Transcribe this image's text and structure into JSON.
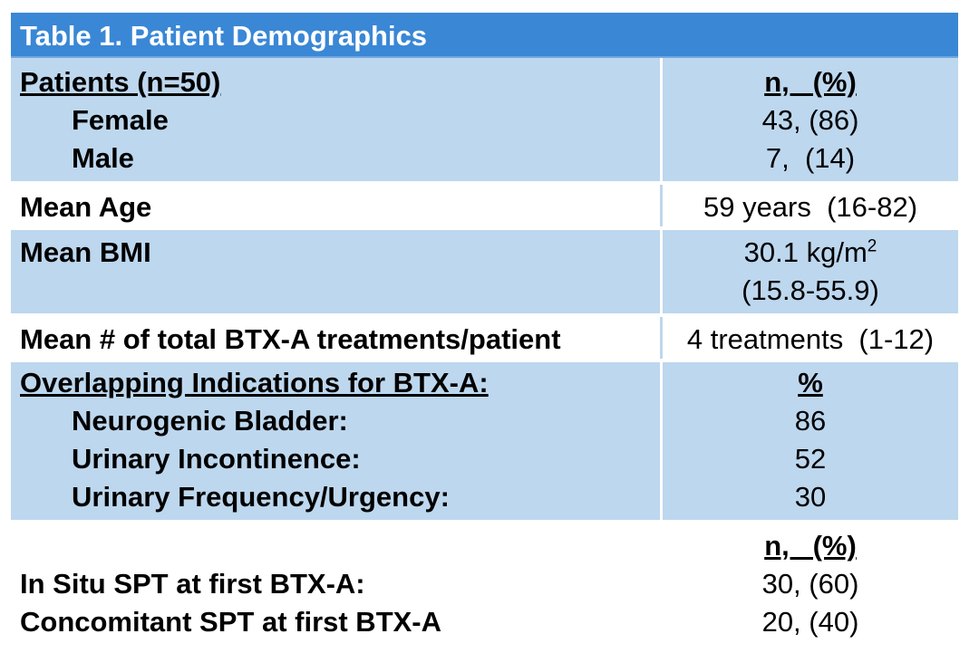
{
  "table": {
    "title": "Table 1. Patient Demographics",
    "patients": {
      "heading": "Patients (n=50)",
      "col_header": "n,   (%)",
      "female_label": "Female",
      "female_value": "43, (86)",
      "male_label": "Male",
      "male_value": "7,  (14)"
    },
    "age": {
      "label": "Mean Age",
      "value": "59 years  (16-82)"
    },
    "bmi": {
      "label": "Mean BMI",
      "value_main": "30.1 kg/m",
      "value_sup": "2",
      "value_range": "(15.8-55.9)"
    },
    "treatments": {
      "label": "Mean # of total BTX-A treatments/patient",
      "value": "4 treatments  (1-12)"
    },
    "indications": {
      "heading": "Overlapping Indications for BTX-A:",
      "col_header": "%",
      "items": [
        {
          "label": "Neurogenic Bladder:",
          "value": "86"
        },
        {
          "label": "Urinary Incontinence:",
          "value": "52"
        },
        {
          "label": "Urinary Frequency/Urgency:",
          "value": "30"
        }
      ]
    },
    "spt": {
      "col_header": "n,   (%)",
      "insitu_label": "In Situ SPT at first BTX-A:",
      "insitu_value": "30, (60)",
      "concomitant_label": "Concomitant SPT at first BTX-A",
      "concomitant_value": "20, (40)"
    }
  }
}
